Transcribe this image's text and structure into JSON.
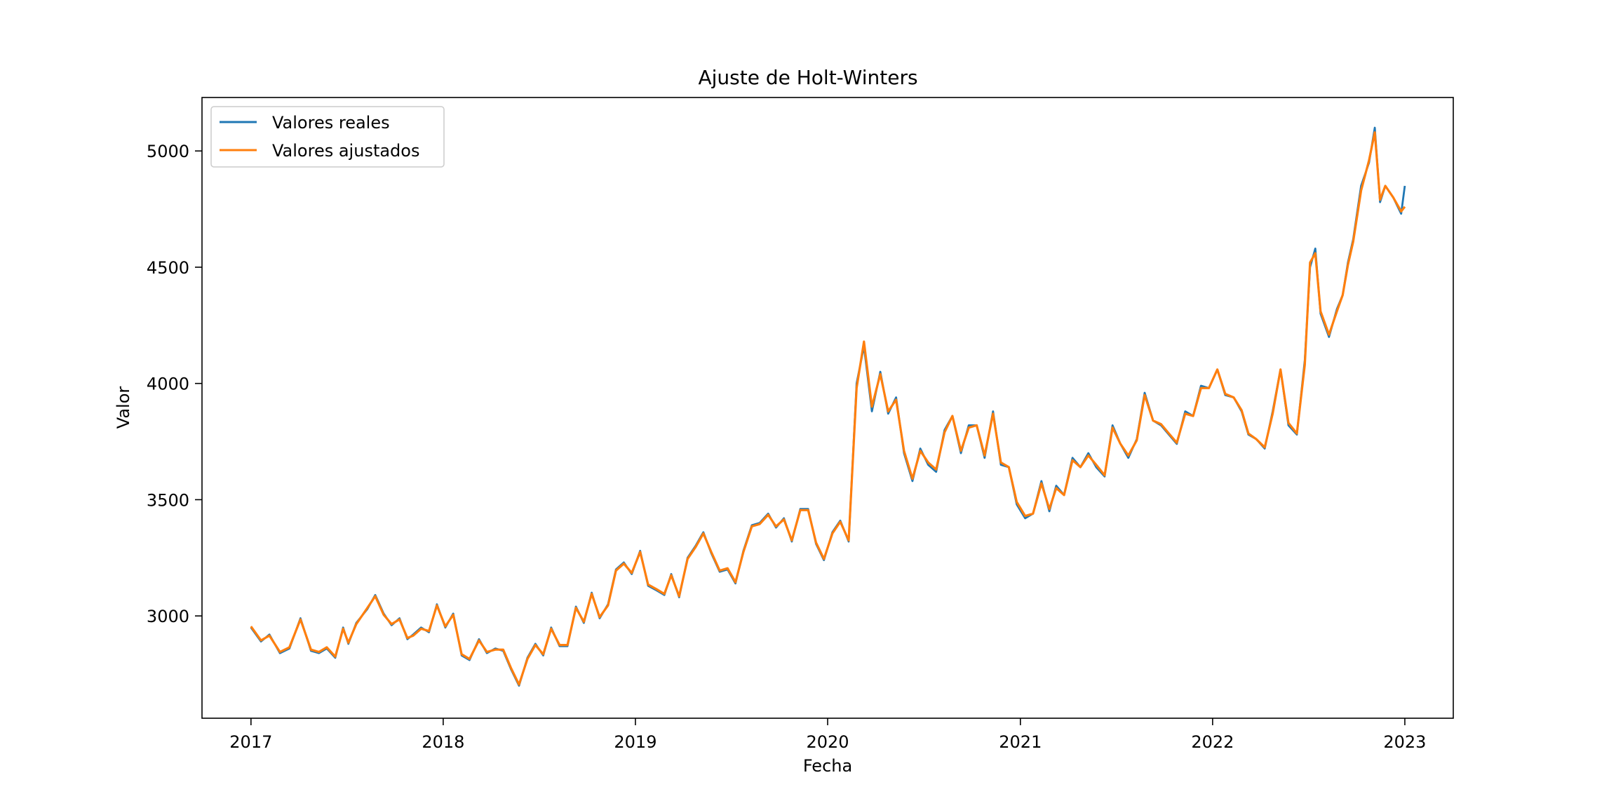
{
  "chart_data": {
    "type": "line",
    "title": "Ajuste de Holt-Winters",
    "xlabel": "Fecha",
    "ylabel": "Valor",
    "x_range": [
      "2016-09-30",
      "2023-04-03"
    ],
    "ylim": [
      2560,
      5230
    ],
    "grid": false,
    "legend_position": "top-left",
    "x_ticks": [
      {
        "label": "2017",
        "date": "2017-01-01"
      },
      {
        "label": "2018",
        "date": "2018-01-01"
      },
      {
        "label": "2019",
        "date": "2019-01-01"
      },
      {
        "label": "2020",
        "date": "2020-01-01"
      },
      {
        "label": "2021",
        "date": "2021-01-01"
      },
      {
        "label": "2022",
        "date": "2022-01-01"
      },
      {
        "label": "2023",
        "date": "2023-01-01"
      }
    ],
    "y_ticks": [
      {
        "label": "3000",
        "value": 3000
      },
      {
        "label": "3500",
        "value": 3500
      },
      {
        "label": "4000",
        "value": 4000
      },
      {
        "label": "4500",
        "value": 4500
      },
      {
        "label": "5000",
        "value": 5000
      }
    ],
    "x": [
      "2017-01-01",
      "2017-01-20",
      "2017-02-05",
      "2017-02-25",
      "2017-03-15",
      "2017-04-05",
      "2017-04-25",
      "2017-05-10",
      "2017-05-25",
      "2017-06-10",
      "2017-06-25",
      "2017-07-05",
      "2017-07-20",
      "2017-08-10",
      "2017-08-25",
      "2017-09-10",
      "2017-09-25",
      "2017-10-10",
      "2017-10-25",
      "2017-11-05",
      "2017-11-20",
      "2017-12-05",
      "2017-12-20",
      "2018-01-05",
      "2018-01-20",
      "2018-02-05",
      "2018-02-20",
      "2018-03-10",
      "2018-03-25",
      "2018-04-10",
      "2018-04-25",
      "2018-05-10",
      "2018-05-25",
      "2018-06-10",
      "2018-06-25",
      "2018-07-10",
      "2018-07-25",
      "2018-08-10",
      "2018-08-25",
      "2018-09-10",
      "2018-09-25",
      "2018-10-10",
      "2018-10-25",
      "2018-11-10",
      "2018-11-25",
      "2018-12-10",
      "2018-12-25",
      "2019-01-10",
      "2019-01-25",
      "2019-02-10",
      "2019-02-25",
      "2019-03-10",
      "2019-03-25",
      "2019-04-10",
      "2019-04-25",
      "2019-05-10",
      "2019-05-25",
      "2019-06-10",
      "2019-06-25",
      "2019-07-10",
      "2019-07-25",
      "2019-08-10",
      "2019-08-25",
      "2019-09-10",
      "2019-09-25",
      "2019-10-10",
      "2019-10-25",
      "2019-11-10",
      "2019-11-25",
      "2019-12-10",
      "2019-12-25",
      "2020-01-10",
      "2020-01-25",
      "2020-02-10",
      "2020-02-25",
      "2020-03-10",
      "2020-03-25",
      "2020-04-10",
      "2020-04-25",
      "2020-05-10",
      "2020-05-25",
      "2020-06-10",
      "2020-06-25",
      "2020-07-10",
      "2020-07-25",
      "2020-08-10",
      "2020-08-25",
      "2020-09-10",
      "2020-09-25",
      "2020-10-10",
      "2020-10-25",
      "2020-11-10",
      "2020-11-25",
      "2020-12-10",
      "2020-12-25",
      "2021-01-10",
      "2021-01-25",
      "2021-02-10",
      "2021-02-25",
      "2021-03-10",
      "2021-03-25",
      "2021-04-10",
      "2021-04-25",
      "2021-05-10",
      "2021-05-25",
      "2021-06-10",
      "2021-06-25",
      "2021-07-10",
      "2021-07-25",
      "2021-08-10",
      "2021-08-25",
      "2021-09-10",
      "2021-09-25",
      "2021-10-10",
      "2021-10-25",
      "2021-11-10",
      "2021-11-25",
      "2021-12-10",
      "2021-12-25",
      "2022-01-10",
      "2022-01-25",
      "2022-02-10",
      "2022-02-25",
      "2022-03-10",
      "2022-03-25",
      "2022-04-10",
      "2022-04-25",
      "2022-05-10",
      "2022-05-25",
      "2022-06-10",
      "2022-06-25",
      "2022-07-05",
      "2022-07-15",
      "2022-07-25",
      "2022-08-10",
      "2022-08-25",
      "2022-09-05",
      "2022-09-15",
      "2022-09-25",
      "2022-10-10",
      "2022-10-25",
      "2022-11-05",
      "2022-11-15",
      "2022-11-25",
      "2022-12-10",
      "2022-12-25",
      "2023-01-01"
    ],
    "series": [
      {
        "name": "Valores reales",
        "color": "#1f77b4",
        "values": [
          2950,
          2890,
          2920,
          2840,
          2860,
          2990,
          2850,
          2840,
          2860,
          2820,
          2950,
          2880,
          2970,
          3030,
          3090,
          3010,
          2960,
          2990,
          2900,
          2920,
          2950,
          2930,
          3050,
          2950,
          3010,
          2830,
          2810,
          2900,
          2840,
          2860,
          2850,
          2770,
          2700,
          2820,
          2880,
          2830,
          2950,
          2870,
          2870,
          3040,
          2970,
          3100,
          2990,
          3050,
          3200,
          3230,
          3180,
          3280,
          3130,
          3110,
          3090,
          3180,
          3080,
          3250,
          3300,
          3360,
          3270,
          3190,
          3200,
          3140,
          3280,
          3390,
          3400,
          3440,
          3380,
          3420,
          3320,
          3460,
          3460,
          3310,
          3240,
          3360,
          3410,
          3320,
          4000,
          4160,
          3880,
          4050,
          3870,
          3940,
          3700,
          3580,
          3720,
          3650,
          3620,
          3800,
          3860,
          3700,
          3820,
          3820,
          3680,
          3880,
          3650,
          3640,
          3480,
          3420,
          3440,
          3580,
          3450,
          3560,
          3520,
          3680,
          3640,
          3700,
          3640,
          3600,
          3820,
          3740,
          3680,
          3760,
          3960,
          3840,
          3820,
          3780,
          3740,
          3880,
          3860,
          3990,
          3980,
          4060,
          3950,
          3940,
          3880,
          3780,
          3760,
          3720,
          3880,
          4060,
          3820,
          3780,
          4100,
          4500,
          4580,
          4300,
          4200,
          4320,
          4380,
          4520,
          4620,
          4850,
          4950,
          5100,
          4780,
          4850,
          4800,
          4730,
          4850
        ]
      },
      {
        "name": "Valores ajustados",
        "color": "#ff7f0e",
        "values": [
          2955,
          2895,
          2915,
          2845,
          2865,
          2985,
          2855,
          2845,
          2865,
          2825,
          2945,
          2885,
          2965,
          3035,
          3085,
          3005,
          2965,
          2985,
          2905,
          2915,
          2945,
          2935,
          3045,
          2955,
          3005,
          2835,
          2815,
          2895,
          2845,
          2855,
          2855,
          2775,
          2705,
          2815,
          2875,
          2835,
          2945,
          2875,
          2875,
          3035,
          2975,
          3095,
          2995,
          3045,
          3195,
          3225,
          3185,
          3275,
          3135,
          3115,
          3095,
          3175,
          3085,
          3245,
          3295,
          3355,
          3275,
          3195,
          3205,
          3145,
          3275,
          3385,
          3395,
          3435,
          3385,
          3415,
          3325,
          3455,
          3455,
          3315,
          3245,
          3355,
          3405,
          3325,
          3980,
          4180,
          3900,
          4040,
          3880,
          3930,
          3710,
          3590,
          3710,
          3660,
          3630,
          3790,
          3860,
          3710,
          3810,
          3820,
          3690,
          3870,
          3660,
          3640,
          3490,
          3430,
          3440,
          3570,
          3460,
          3550,
          3520,
          3670,
          3640,
          3690,
          3650,
          3605,
          3810,
          3740,
          3690,
          3755,
          3950,
          3840,
          3825,
          3785,
          3745,
          3870,
          3860,
          3980,
          3980,
          4060,
          3955,
          3940,
          3885,
          3785,
          3760,
          3725,
          3870,
          4060,
          3830,
          3785,
          4080,
          4520,
          4560,
          4310,
          4210,
          4310,
          4380,
          4510,
          4610,
          4830,
          4960,
          5080,
          4790,
          4850,
          4800,
          4740,
          4760
        ]
      }
    ]
  }
}
